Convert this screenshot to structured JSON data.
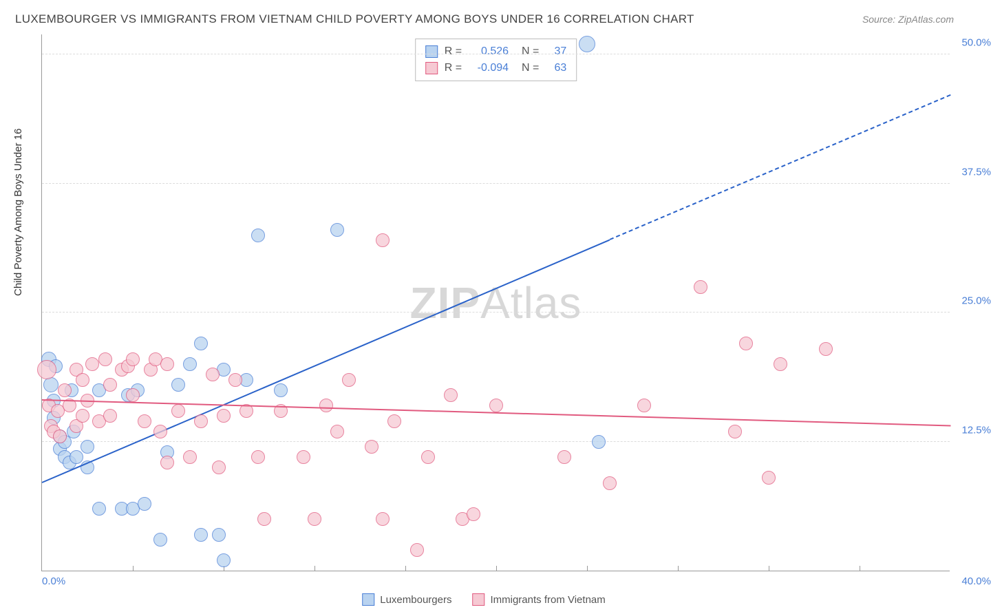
{
  "title": "LUXEMBOURGER VS IMMIGRANTS FROM VIETNAM CHILD POVERTY AMONG BOYS UNDER 16 CORRELATION CHART",
  "source": "Source: ZipAtlas.com",
  "y_axis_title": "Child Poverty Among Boys Under 16",
  "watermark_bold": "ZIP",
  "watermark_rest": "Atlas",
  "chart": {
    "xlim": [
      0,
      40
    ],
    "ylim": [
      0,
      52
    ],
    "y_ticks": [
      12.5,
      25.0,
      37.5,
      50.0
    ],
    "y_tick_labels": [
      "12.5%",
      "25.0%",
      "37.5%",
      "50.0%"
    ],
    "x_tick_positions": [
      4,
      8,
      12,
      16,
      20,
      24,
      28,
      32,
      36
    ],
    "x_origin_label": "0.0%",
    "x_end_label": "40.0%",
    "background_color": "#ffffff",
    "grid_color": "#dcdcdc",
    "axis_color": "#999999"
  },
  "series": [
    {
      "name": "Luxembourgers",
      "marker_fill": "#b9d3f0",
      "marker_stroke": "#4a7fd6",
      "marker_opacity": 0.75,
      "r_value": "0.526",
      "n_value": "37",
      "trend": {
        "x1": 0,
        "y1": 8.5,
        "x2": 25,
        "y2": 32,
        "color": "#2a62c9",
        "dash_extend_x": 40,
        "dash_extend_y": 46
      },
      "points": [
        [
          0.3,
          20.5,
          11
        ],
        [
          0.4,
          18.0,
          11
        ],
        [
          0.5,
          16.5,
          10
        ],
        [
          0.5,
          14.8,
          10
        ],
        [
          0.8,
          13.0,
          10
        ],
        [
          0.8,
          11.8,
          10
        ],
        [
          1.0,
          11.0,
          10
        ],
        [
          1.0,
          12.5,
          10
        ],
        [
          1.2,
          10.5,
          10
        ],
        [
          1.4,
          13.5,
          10
        ],
        [
          1.5,
          11.0,
          10
        ],
        [
          1.3,
          17.5,
          10
        ],
        [
          2.0,
          12.0,
          10
        ],
        [
          2.0,
          10.0,
          10
        ],
        [
          2.5,
          6.0,
          10
        ],
        [
          2.5,
          17.5,
          10
        ],
        [
          3.5,
          6.0,
          10
        ],
        [
          3.8,
          17.0,
          10
        ],
        [
          4.0,
          6.0,
          10
        ],
        [
          4.2,
          17.5,
          10
        ],
        [
          4.5,
          6.5,
          10
        ],
        [
          5.2,
          3.0,
          10
        ],
        [
          5.5,
          11.5,
          10
        ],
        [
          6.0,
          18.0,
          10
        ],
        [
          6.5,
          20.0,
          10
        ],
        [
          7.0,
          22.0,
          10
        ],
        [
          7.0,
          3.5,
          10
        ],
        [
          7.8,
          3.5,
          10
        ],
        [
          8.0,
          1.0,
          10
        ],
        [
          8.0,
          19.5,
          10
        ],
        [
          9.0,
          18.5,
          10
        ],
        [
          9.5,
          32.5,
          10
        ],
        [
          10.5,
          17.5,
          10
        ],
        [
          13.0,
          33.0,
          10
        ],
        [
          24.0,
          51.0,
          12
        ],
        [
          24.5,
          12.5,
          10
        ],
        [
          0.6,
          19.8,
          10
        ]
      ]
    },
    {
      "name": "Immigrants from Vietnam",
      "marker_fill": "#f6c9d3",
      "marker_stroke": "#e15a7f",
      "marker_opacity": 0.75,
      "r_value": "-0.094",
      "n_value": "63",
      "trend": {
        "x1": 0,
        "y1": 16.5,
        "x2": 40,
        "y2": 14.0,
        "color": "#e15a7f"
      },
      "points": [
        [
          0.2,
          19.5,
          14
        ],
        [
          0.3,
          16.0,
          10
        ],
        [
          0.4,
          14.0,
          10
        ],
        [
          0.5,
          13.5,
          10
        ],
        [
          0.7,
          15.5,
          10
        ],
        [
          0.8,
          13.0,
          10
        ],
        [
          1.0,
          17.5,
          10
        ],
        [
          1.2,
          16.0,
          10
        ],
        [
          1.5,
          14.0,
          10
        ],
        [
          1.5,
          19.5,
          10
        ],
        [
          1.8,
          15.0,
          10
        ],
        [
          1.8,
          18.5,
          10
        ],
        [
          2.0,
          16.5,
          10
        ],
        [
          2.2,
          20.0,
          10
        ],
        [
          2.5,
          14.5,
          10
        ],
        [
          2.8,
          20.5,
          10
        ],
        [
          3.0,
          15.0,
          10
        ],
        [
          3.0,
          18.0,
          10
        ],
        [
          3.5,
          19.5,
          10
        ],
        [
          3.8,
          19.8,
          10
        ],
        [
          4.0,
          17.0,
          10
        ],
        [
          4.0,
          20.5,
          10
        ],
        [
          4.5,
          14.5,
          10
        ],
        [
          4.8,
          19.5,
          10
        ],
        [
          5.0,
          20.5,
          10
        ],
        [
          5.2,
          13.5,
          10
        ],
        [
          5.5,
          20.0,
          10
        ],
        [
          5.5,
          10.5,
          10
        ],
        [
          6.0,
          15.5,
          10
        ],
        [
          6.5,
          11.0,
          10
        ],
        [
          7.0,
          14.5,
          10
        ],
        [
          7.5,
          19.0,
          10
        ],
        [
          7.8,
          10.0,
          10
        ],
        [
          8.0,
          15.0,
          10
        ],
        [
          8.5,
          18.5,
          10
        ],
        [
          9.0,
          15.5,
          10
        ],
        [
          9.5,
          11.0,
          10
        ],
        [
          9.8,
          5.0,
          10
        ],
        [
          10.5,
          15.5,
          10
        ],
        [
          11.5,
          11.0,
          10
        ],
        [
          12.0,
          5.0,
          10
        ],
        [
          12.5,
          16.0,
          10
        ],
        [
          13.0,
          13.5,
          10
        ],
        [
          13.5,
          18.5,
          10
        ],
        [
          14.5,
          12.0,
          10
        ],
        [
          15.0,
          5.0,
          10
        ],
        [
          15.0,
          32.0,
          10
        ],
        [
          15.5,
          14.5,
          10
        ],
        [
          16.5,
          2.0,
          10
        ],
        [
          17.0,
          11.0,
          10
        ],
        [
          18.0,
          17.0,
          10
        ],
        [
          18.5,
          5.0,
          10
        ],
        [
          19.0,
          5.5,
          10
        ],
        [
          20.0,
          16.0,
          10
        ],
        [
          23.0,
          11.0,
          10
        ],
        [
          25.0,
          8.5,
          10
        ],
        [
          26.5,
          16.0,
          10
        ],
        [
          29.0,
          27.5,
          10
        ],
        [
          30.5,
          13.5,
          10
        ],
        [
          31.0,
          22.0,
          10
        ],
        [
          32.0,
          9.0,
          10
        ],
        [
          32.5,
          20.0,
          10
        ],
        [
          34.5,
          21.5,
          10
        ]
      ]
    }
  ],
  "bottom_legend": [
    {
      "label": "Luxembourgers",
      "fill": "#b9d3f0",
      "stroke": "#4a7fd6"
    },
    {
      "label": "Immigrants from Vietnam",
      "fill": "#f6c9d3",
      "stroke": "#e15a7f"
    }
  ]
}
